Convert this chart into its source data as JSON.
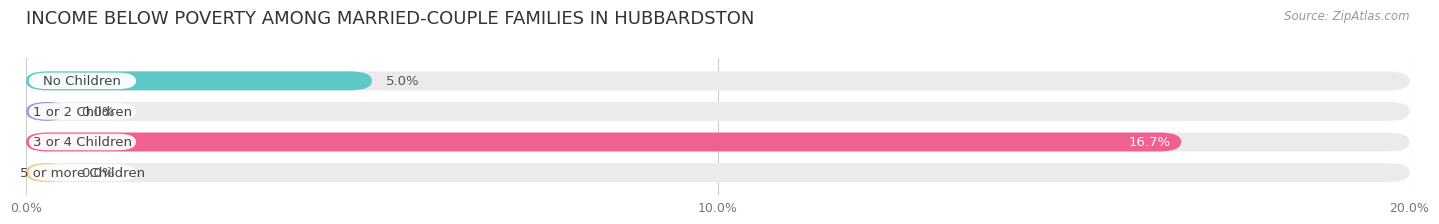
{
  "title": "INCOME BELOW POVERTY AMONG MARRIED-COUPLE FAMILIES IN HUBBARDSTON",
  "source": "Source: ZipAtlas.com",
  "categories": [
    "No Children",
    "1 or 2 Children",
    "3 or 4 Children",
    "5 or more Children"
  ],
  "values": [
    5.0,
    0.0,
    16.7,
    0.0
  ],
  "bar_colors": [
    "#5ec8c8",
    "#a898cc",
    "#f06090",
    "#f5c890"
  ],
  "xlim": [
    0,
    20.0
  ],
  "xticks": [
    0.0,
    10.0,
    20.0
  ],
  "xticklabels": [
    "0.0%",
    "10.0%",
    "20.0%"
  ],
  "page_background": "#ffffff",
  "bar_background_color": "#ebebeb",
  "title_fontsize": 13,
  "label_fontsize": 9.5,
  "value_fontsize": 9.5,
  "bar_height": 0.62,
  "label_box_color": "#ffffff",
  "zero_bar_width": 0.6
}
